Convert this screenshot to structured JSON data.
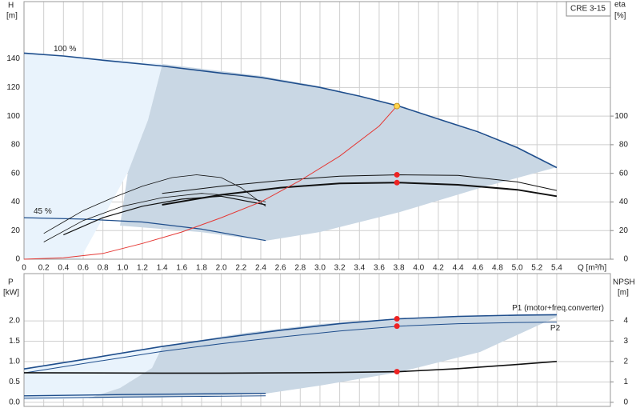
{
  "chart_data": [
    {
      "type": "line",
      "title": "CRE 3-15",
      "ylabel": "H",
      "yunit": "[m]",
      "y2label": "eta",
      "y2unit": "[%]",
      "xlabel": "Q [m³/h]",
      "xlim": [
        0,
        5.944
      ],
      "xticks": [
        0,
        0.2,
        0.4,
        0.6,
        0.8,
        {
          "value": 1,
          "label": "1.0"
        },
        1.2,
        1.4,
        1.6,
        1.8,
        {
          "value": 2,
          "label": "2.0"
        },
        2.2,
        2.4,
        2.6,
        2.8,
        {
          "value": 3,
          "label": "3.0"
        },
        3.2,
        3.4,
        3.6,
        3.8,
        {
          "value": 4,
          "label": "4.0"
        },
        4.2,
        4.4,
        4.6,
        4.8,
        {
          "value": 5,
          "label": "5.0"
        },
        5.2,
        5.4
      ],
      "ylim": [
        0,
        180
      ],
      "yticks": [
        0,
        20,
        40,
        60,
        80,
        100,
        120,
        140
      ],
      "y2lim": [
        0,
        180
      ],
      "y2ticks": [
        0,
        20,
        40,
        60,
        80,
        100
      ],
      "grid": true,
      "series": [
        {
          "name": "100 %",
          "color": "#1f4e8c",
          "width": 1.6,
          "x": [
            0,
            0.4,
            0.8,
            1.4,
            2.0,
            2.4,
            3.0,
            3.4,
            3.8,
            4.2,
            4.6,
            5.0,
            5.4
          ],
          "values": [
            144,
            142,
            139,
            135,
            130,
            127,
            120,
            114,
            107,
            98,
            89,
            78,
            64
          ]
        },
        {
          "name": "45 %",
          "color": "#1f4e8c",
          "width": 1.2,
          "x": [
            0,
            0.6,
            1.2,
            1.8,
            2.45
          ],
          "values": [
            29,
            28,
            26,
            21,
            13
          ]
        },
        {
          "color": "#111",
          "width": 1,
          "axis": "y2",
          "x": [
            1.4,
            2.0,
            2.6,
            3.2,
            3.8,
            4.4,
            5.0,
            5.4
          ],
          "values": [
            46,
            51,
            55,
            58,
            59,
            58.5,
            54,
            48
          ]
        },
        {
          "color": "#111",
          "width": 2,
          "axis": "y2",
          "x": [
            1.4,
            2.0,
            2.6,
            3.2,
            3.8,
            4.4,
            5.0,
            5.4
          ],
          "values": [
            38,
            45,
            50,
            53,
            53.5,
            52,
            48.5,
            44
          ]
        },
        {
          "color": "#111",
          "width": 0.8,
          "axis": "y2",
          "x": [
            0.2,
            0.4,
            0.6,
            0.9,
            1.2,
            1.5,
            1.75,
            2.0,
            2.2,
            2.45
          ],
          "values": [
            18,
            26,
            34,
            43,
            51,
            57,
            59,
            57,
            50,
            37
          ]
        },
        {
          "color": "#111",
          "width": 0.8,
          "axis": "y2",
          "x": [
            0.2,
            0.6,
            1.0,
            1.4,
            1.8,
            2.2,
            2.45
          ],
          "values": [
            12,
            27,
            37,
            43,
            46,
            44,
            40
          ]
        },
        {
          "color": "#111",
          "width": 1.2,
          "axis": "y2",
          "x": [
            0.4,
            0.8,
            1.2,
            1.6,
            2.0,
            2.45
          ],
          "values": [
            17,
            29,
            37,
            42,
            44,
            38
          ]
        },
        {
          "color": "#e53935",
          "width": 1,
          "x": [
            0,
            0.4,
            0.8,
            1.2,
            1.6,
            2.0,
            2.4,
            2.8,
            3.2,
            3.6,
            3.78
          ],
          "values": [
            0,
            1,
            4,
            11,
            19,
            29,
            40,
            55,
            72,
            93,
            107
          ]
        },
        {
          "color": "#ee2222",
          "marker": true,
          "axis": "y2",
          "x": [
            3.78,
            3.78
          ],
          "values": [
            59,
            53.5
          ]
        },
        {
          "color": "#ffd54f",
          "marker": true,
          "x": [
            3.78
          ],
          "values": [
            107
          ]
        }
      ]
    },
    {
      "type": "line",
      "ylabel": "P",
      "yunit": "[kW]",
      "y2label": "NPSH",
      "y2unit": "[m]",
      "xlim": [
        0,
        5.944
      ],
      "xticks": [
        0,
        0.2,
        0.4,
        0.6,
        0.8,
        1,
        1.2,
        1.4,
        1.6,
        1.8,
        2,
        2.2,
        2.4,
        2.6,
        2.8,
        3,
        3.2,
        3.4,
        3.6,
        3.8,
        4,
        4.2,
        4.4,
        4.6,
        4.8,
        5,
        5.2,
        5.4
      ],
      "ylim": [
        -0.1,
        3.16
      ],
      "yticks": [
        {
          "value": 0,
          "label": "0.0"
        },
        {
          "value": 0.5,
          "label": "0.5"
        },
        {
          "value": 1,
          "label": "1.0"
        },
        {
          "value": 1.5,
          "label": "1.5"
        },
        {
          "value": 2,
          "label": "2.0"
        }
      ],
      "y2lim": [
        -0.2,
        6.3
      ],
      "y2ticks": [
        0,
        1,
        2,
        3,
        4
      ],
      "grid": true,
      "series": [
        {
          "name": "P1 (motor+freq.converter)",
          "color": "#1f4e8c",
          "width": 1.6,
          "x": [
            0,
            0.6,
            1.4,
            2.0,
            2.6,
            3.2,
            3.8,
            4.4,
            5.0,
            5.4
          ],
          "values": [
            0.82,
            1.05,
            1.37,
            1.58,
            1.77,
            1.93,
            2.05,
            2.11,
            2.14,
            2.15
          ]
        },
        {
          "name": "P2",
          "color": "#1f4e8c",
          "width": 1,
          "x": [
            0,
            0.6,
            1.4,
            2.0,
            2.6,
            3.2,
            3.8,
            4.4,
            5.0,
            5.4
          ],
          "values": [
            0.72,
            0.95,
            1.25,
            1.44,
            1.6,
            1.75,
            1.87,
            1.93,
            1.96,
            1.97
          ]
        },
        {
          "color": "#111",
          "width": 1.6,
          "axis": "y2",
          "x": [
            0,
            1.4,
            2.0,
            2.6,
            3.2,
            3.8,
            4.4,
            5.0,
            5.4
          ],
          "values": [
            1.45,
            1.43,
            1.43,
            1.44,
            1.46,
            1.5,
            1.65,
            1.85,
            2.0
          ]
        },
        {
          "color": "#1f4e8c",
          "width": 1.4,
          "x": [
            0,
            1.0,
            2.45
          ],
          "values": [
            0.16,
            0.19,
            0.22
          ]
        },
        {
          "color": "#1f4e8c",
          "width": 1,
          "x": [
            0,
            1.0,
            2.45
          ],
          "values": [
            0.1,
            0.13,
            0.16
          ]
        },
        {
          "color": "#ee2222",
          "marker": true,
          "x": [
            3.78,
            3.78
          ],
          "values": [
            2.05,
            1.87
          ]
        },
        {
          "color": "#ee2222",
          "marker": true,
          "axis": "y2",
          "x": [
            3.78
          ],
          "values": [
            1.5
          ]
        }
      ]
    }
  ]
}
